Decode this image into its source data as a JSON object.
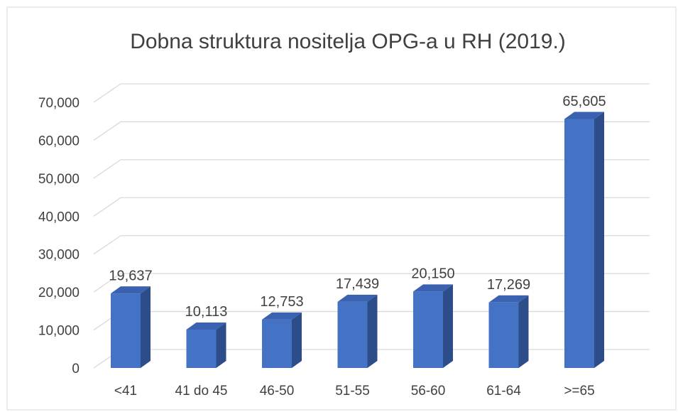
{
  "chart_data": {
    "type": "bar3d",
    "title": "Dobna struktura nositelja OPG-a u RH (2019.)",
    "categories": [
      "<41",
      "41 do 45",
      "46-50",
      "51-55",
      "56-60",
      "61-64",
      ">=65"
    ],
    "values": [
      19637,
      10113,
      12753,
      17439,
      20150,
      17269,
      65605
    ],
    "value_labels": [
      "19,637",
      "10,113",
      "12,753",
      "17,439",
      "20,150",
      "17,269",
      "65,605"
    ],
    "color": "#4472c4",
    "ylim": [
      0,
      70000
    ],
    "yticks": [
      0,
      {
        "value": 10000,
        "label": "10,000"
      },
      {
        "value": 20000,
        "label": "20,000"
      },
      {
        "value": 30000,
        "label": "30,000"
      },
      {
        "value": 40000,
        "label": "40,000"
      },
      {
        "value": 50000,
        "label": "50,000"
      },
      {
        "value": 60000,
        "label": "60,000"
      },
      {
        "value": 70000,
        "label": "70,000"
      }
    ],
    "grid": true
  }
}
